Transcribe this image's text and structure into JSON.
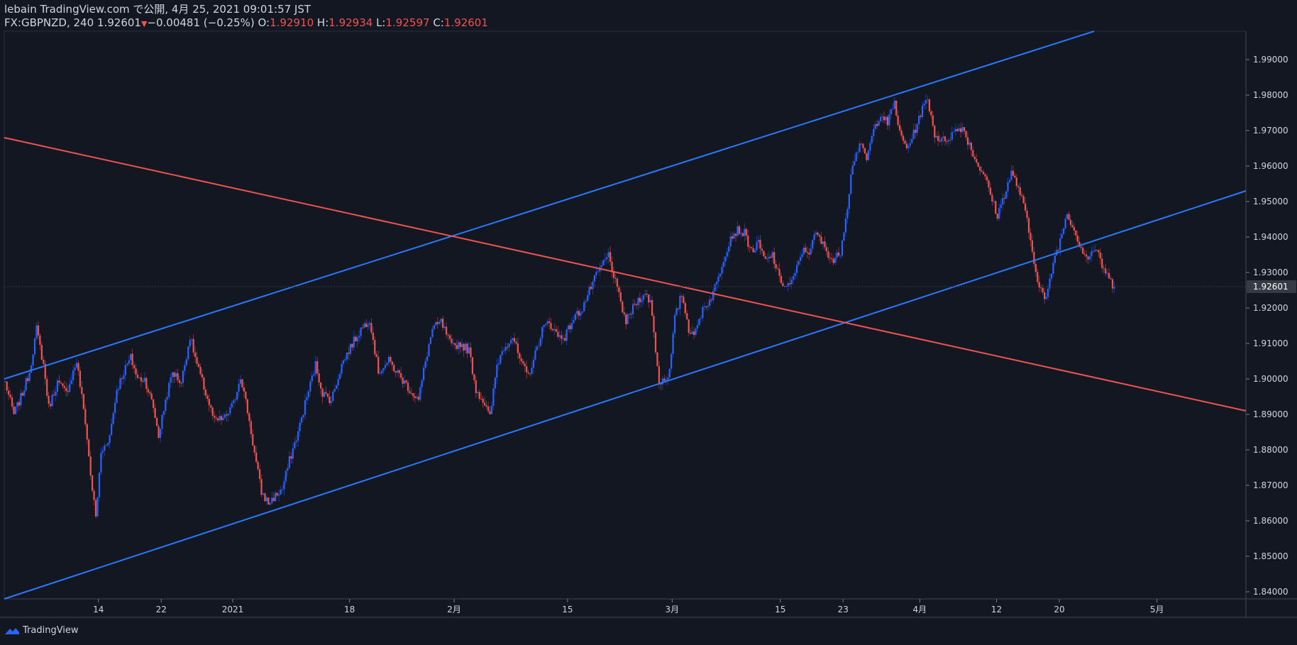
{
  "header": {
    "published_line": "lebain TradingView.com で公開, 4月 25, 2021 09:01:57 JST",
    "symbol": "FX:GBPNZD, 240",
    "last": "1.92601",
    "change": "−0.00481 (−0.25%)",
    "o_label": "O:",
    "o_value": "1.92910",
    "h_label": "H:",
    "h_value": "1.92934",
    "l_label": "L:",
    "l_value": "1.92597",
    "c_label": "C:",
    "c_value": "1.92601"
  },
  "footer": {
    "brand": "TradingView",
    "logo_icon": "tradingview-logo-icon"
  },
  "colors": {
    "background": "#131722",
    "up": "#2962ff",
    "down": "#ef5350",
    "channel": "#2979ff",
    "trendline": "#ef5350",
    "axis_text": "#d1d4dc",
    "price_tag": "#363a45"
  },
  "chart_data": {
    "type": "candlestick",
    "symbol": "FX:GBPNZD",
    "timeframe": "240",
    "ylim": [
      1.838,
      1.998
    ],
    "y_ticks": [
      "1.99000",
      "1.98000",
      "1.97000",
      "1.96000",
      "1.95000",
      "1.94000",
      "1.93000",
      "1.92000",
      "1.91000",
      "1.90000",
      "1.89000",
      "1.88000",
      "1.87000",
      "1.86000",
      "1.85000",
      "1.84000"
    ],
    "y_tick_values": [
      1.99,
      1.98,
      1.97,
      1.96,
      1.95,
      1.94,
      1.93,
      1.92,
      1.91,
      1.9,
      1.89,
      1.88,
      1.87,
      1.86,
      1.85,
      1.84
    ],
    "x_ticks": [
      {
        "label": "14",
        "bar": 54
      },
      {
        "label": "22",
        "bar": 90
      },
      {
        "label": "2021",
        "bar": 131
      },
      {
        "label": "18",
        "bar": 198
      },
      {
        "label": "2月",
        "bar": 258
      },
      {
        "label": "15",
        "bar": 323
      },
      {
        "label": "3月",
        "bar": 383
      },
      {
        "label": "15",
        "bar": 445
      },
      {
        "label": "23",
        "bar": 481
      },
      {
        "label": "4月",
        "bar": 525
      },
      {
        "label": "12",
        "bar": 569
      },
      {
        "label": "20",
        "bar": 605
      },
      {
        "label": "5月",
        "bar": 661
      }
    ],
    "total_bars": 712,
    "last_price_label": "1.92601",
    "last_price": 1.92601,
    "price_path": [
      [
        0,
        1.899
      ],
      [
        5,
        1.89
      ],
      [
        10,
        1.896
      ],
      [
        14,
        1.902
      ],
      [
        18,
        1.914
      ],
      [
        22,
        1.904
      ],
      [
        25,
        1.892
      ],
      [
        30,
        1.899
      ],
      [
        35,
        1.896
      ],
      [
        41,
        1.905
      ],
      [
        46,
        1.888
      ],
      [
        49,
        1.873
      ],
      [
        52,
        1.861
      ],
      [
        55,
        1.879
      ],
      [
        60,
        1.884
      ],
      [
        64,
        1.897
      ],
      [
        68,
        1.902
      ],
      [
        72,
        1.906
      ],
      [
        76,
        1.9
      ],
      [
        80,
        1.9
      ],
      [
        85,
        1.892
      ],
      [
        88,
        1.884
      ],
      [
        92,
        1.894
      ],
      [
        96,
        1.902
      ],
      [
        101,
        1.899
      ],
      [
        106,
        1.912
      ],
      [
        110,
        1.904
      ],
      [
        115,
        1.896
      ],
      [
        120,
        1.888
      ],
      [
        126,
        1.889
      ],
      [
        131,
        1.893
      ],
      [
        135,
        1.901
      ],
      [
        139,
        1.891
      ],
      [
        143,
        1.879
      ],
      [
        147,
        1.868
      ],
      [
        151,
        1.865
      ],
      [
        155,
        1.867
      ],
      [
        159,
        1.869
      ],
      [
        163,
        1.877
      ],
      [
        168,
        1.885
      ],
      [
        172,
        1.893
      ],
      [
        178,
        1.904
      ],
      [
        182,
        1.896
      ],
      [
        187,
        1.894
      ],
      [
        193,
        1.904
      ],
      [
        198,
        1.909
      ],
      [
        204,
        1.914
      ],
      [
        209,
        1.917
      ],
      [
        214,
        1.902
      ],
      [
        220,
        1.905
      ],
      [
        226,
        1.901
      ],
      [
        232,
        1.897
      ],
      [
        237,
        1.894
      ],
      [
        241,
        1.905
      ],
      [
        245,
        1.914
      ],
      [
        250,
        1.916
      ],
      [
        256,
        1.909
      ],
      [
        261,
        1.91
      ],
      [
        266,
        1.908
      ],
      [
        270,
        1.897
      ],
      [
        274,
        1.894
      ],
      [
        278,
        1.889
      ],
      [
        282,
        1.904
      ],
      [
        286,
        1.909
      ],
      [
        291,
        1.912
      ],
      [
        296,
        1.904
      ],
      [
        300,
        1.901
      ],
      [
        304,
        1.907
      ],
      [
        308,
        1.914
      ],
      [
        312,
        1.916
      ],
      [
        317,
        1.912
      ],
      [
        321,
        1.912
      ],
      [
        326,
        1.917
      ],
      [
        331,
        1.92
      ],
      [
        336,
        1.926
      ],
      [
        341,
        1.931
      ],
      [
        346,
        1.935
      ],
      [
        351,
        1.925
      ],
      [
        356,
        1.916
      ],
      [
        361,
        1.921
      ],
      [
        366,
        1.924
      ],
      [
        370,
        1.922
      ],
      [
        372,
        1.913
      ],
      [
        375,
        1.899
      ],
      [
        378,
        1.9
      ],
      [
        381,
        1.902
      ],
      [
        384,
        1.917
      ],
      [
        388,
        1.924
      ],
      [
        392,
        1.914
      ],
      [
        396,
        1.913
      ],
      [
        400,
        1.92
      ],
      [
        404,
        1.922
      ],
      [
        408,
        1.927
      ],
      [
        412,
        1.934
      ],
      [
        416,
        1.94
      ],
      [
        420,
        1.942
      ],
      [
        424,
        1.941
      ],
      [
        428,
        1.936
      ],
      [
        432,
        1.938
      ],
      [
        436,
        1.933
      ],
      [
        440,
        1.935
      ],
      [
        444,
        1.928
      ],
      [
        448,
        1.926
      ],
      [
        452,
        1.928
      ],
      [
        457,
        1.936
      ],
      [
        461,
        1.936
      ],
      [
        465,
        1.941
      ],
      [
        470,
        1.937
      ],
      [
        475,
        1.933
      ],
      [
        479,
        1.936
      ],
      [
        483,
        1.949
      ],
      [
        486,
        1.961
      ],
      [
        490,
        1.966
      ],
      [
        494,
        1.962
      ],
      [
        498,
        1.97
      ],
      [
        502,
        1.975
      ],
      [
        506,
        1.972
      ],
      [
        510,
        1.978
      ],
      [
        513,
        1.969
      ],
      [
        517,
        1.965
      ],
      [
        521,
        1.969
      ],
      [
        525,
        1.975
      ],
      [
        529,
        1.979
      ],
      [
        533,
        1.969
      ],
      [
        537,
        1.967
      ],
      [
        541,
        1.968
      ],
      [
        545,
        1.97
      ],
      [
        549,
        1.971
      ],
      [
        553,
        1.966
      ],
      [
        557,
        1.961
      ],
      [
        561,
        1.958
      ],
      [
        565,
        1.952
      ],
      [
        569,
        1.946
      ],
      [
        573,
        1.952
      ],
      [
        577,
        1.958
      ],
      [
        581,
        1.954
      ],
      [
        585,
        1.947
      ],
      [
        589,
        1.936
      ],
      [
        593,
        1.926
      ],
      [
        597,
        1.922
      ],
      [
        601,
        1.933
      ],
      [
        605,
        1.939
      ],
      [
        609,
        1.947
      ],
      [
        613,
        1.942
      ],
      [
        617,
        1.937
      ],
      [
        621,
        1.934
      ],
      [
        625,
        1.937
      ],
      [
        629,
        1.932
      ],
      [
        633,
        1.928
      ],
      [
        636,
        1.926
      ]
    ],
    "channel_upper": {
      "x": [
        0,
        625
      ],
      "y": [
        1.9,
        1.998
      ]
    },
    "channel_lower": {
      "x": [
        0,
        712
      ],
      "y": [
        1.838,
        1.953
      ]
    },
    "red_trendline": {
      "x": [
        0,
        712
      ],
      "y": [
        1.968,
        1.891
      ]
    }
  }
}
